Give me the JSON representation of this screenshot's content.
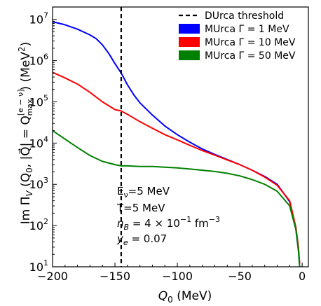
{
  "chart_data": {
    "type": "line",
    "xlabel": "Q",
    "xlabel_sub": "0",
    "xlabel_unit": " (MeV)",
    "ylabel": "Im Π_V (Q_0, |Q⃗| = Q_max^[e−ν]) (MeV²)",
    "ylabel_parts": {
      "pre": "Im Π",
      "sub": "V",
      "mid": " (Q",
      "sub2": "0",
      "mid2": ", |Q",
      "arrow": "⃗",
      "mid3": "| = Q",
      "supsub_sup": "[e − ν]",
      "supsub_sub": "max",
      "post": ") (MeV",
      "post_sup": "2",
      "end": ")"
    },
    "xlim": [
      -200,
      5
    ],
    "ylim": [
      10,
      20000000
    ],
    "yscale": "log",
    "xticks": [
      -200,
      -150,
      -100,
      -50,
      0
    ],
    "xtick_labels": [
      "−200",
      "−150",
      "−100",
      "−50",
      "0"
    ],
    "yticks": [
      10,
      100,
      1000,
      10000,
      100000,
      1000000,
      10000000
    ],
    "ytick_labels": [
      {
        "base": "10",
        "exp": "1"
      },
      {
        "base": "10",
        "exp": "2"
      },
      {
        "base": "10",
        "exp": "3"
      },
      {
        "base": "10",
        "exp": "4"
      },
      {
        "base": "10",
        "exp": "5"
      },
      {
        "base": "10",
        "exp": "6"
      },
      {
        "base": "10",
        "exp": "7"
      }
    ],
    "threshold": {
      "x": -145,
      "label": "DUrca threshold"
    },
    "legend_position": "top-right",
    "series": [
      {
        "name": "MUrca Γ = 1 MeV",
        "color": "#0000ff",
        "x": [
          -200,
          -190,
          -180,
          -170,
          -165,
          -160,
          -155,
          -150,
          -145,
          -140,
          -135,
          -130,
          -120,
          -110,
          -100,
          -90,
          -80,
          -70,
          -60,
          -50,
          -40,
          -30,
          -20,
          -10,
          -5,
          -3,
          -2
        ],
        "y": [
          8800000,
          7400000,
          5800000,
          4200000,
          3400000,
          2400000,
          1500000,
          850000,
          500000,
          260000,
          150000,
          95000,
          48000,
          26000,
          16000,
          10500,
          7200,
          5300,
          4000,
          3000,
          2200,
          1550,
          1000,
          380,
          80,
          25,
          12
        ]
      },
      {
        "name": "MUrca Γ = 10 MeV",
        "color": "#ff0000",
        "x": [
          -200,
          -190,
          -180,
          -170,
          -160,
          -150,
          -145,
          -140,
          -130,
          -120,
          -110,
          -100,
          -90,
          -80,
          -70,
          -60,
          -50,
          -40,
          -30,
          -20,
          -10,
          -5,
          -3,
          -2
        ],
        "y": [
          520000,
          380000,
          270000,
          170000,
          100000,
          65000,
          60000,
          50000,
          33000,
          23000,
          16000,
          12000,
          8800,
          6600,
          5100,
          3900,
          3000,
          2200,
          1500,
          950,
          400,
          90,
          30,
          12
        ]
      },
      {
        "name": "MUrca Γ = 50 MeV",
        "color": "#008000",
        "x": [
          -200,
          -190,
          -180,
          -170,
          -160,
          -150,
          -145,
          -140,
          -130,
          -120,
          -110,
          -100,
          -90,
          -80,
          -70,
          -60,
          -50,
          -40,
          -30,
          -20,
          -10,
          -5,
          -3,
          -2
        ],
        "y": [
          20000,
          12500,
          7800,
          5000,
          3600,
          3000,
          2800,
          2800,
          2700,
          2700,
          2600,
          2500,
          2350,
          2200,
          2050,
          1850,
          1600,
          1300,
          1000,
          680,
          300,
          80,
          25,
          10
        ]
      }
    ],
    "annotations": {
      "line1": "E",
      "line1_sub": "ν",
      "line1_post": "=5 MeV",
      "line2": "T=5 MeV",
      "line3_pre": "n",
      "line3_sub": "B",
      "line3_mid": " = 4 × 10",
      "line3_sup": "−1",
      "line3_unit": " fm",
      "line3_sup2": "−3",
      "line4_pre": "y",
      "line4_sub": "e",
      "line4_post": " = 0.07"
    }
  }
}
